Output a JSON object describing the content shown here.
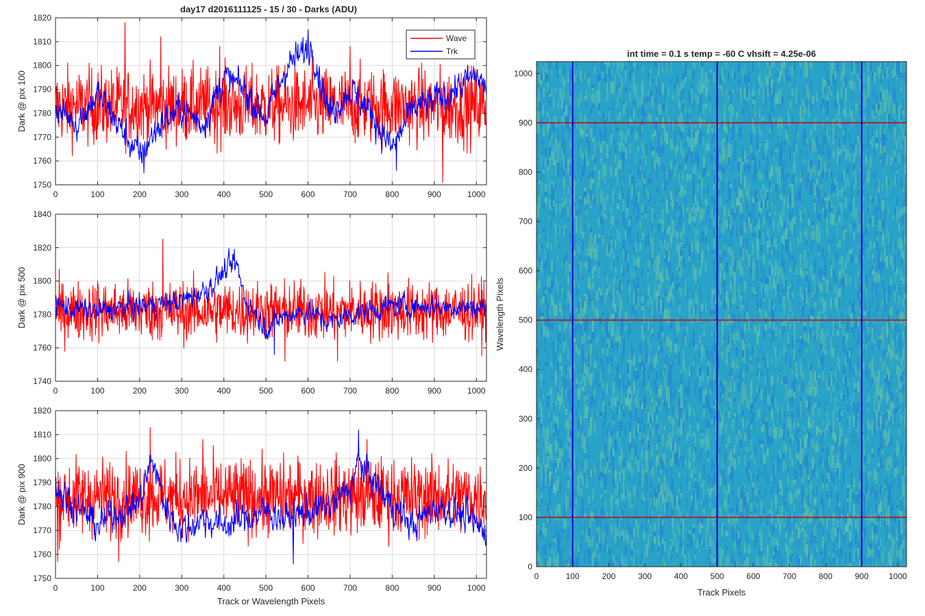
{
  "figure": {
    "title": "day17 d2016111125 - 15 / 30 - Darks (ADU)"
  },
  "legend": [
    "Wave",
    "Trk"
  ],
  "colors": {
    "wave": "#ff0000",
    "trk": "#0000ff",
    "grid": "#d9d9d9",
    "axes": "#262626",
    "image_base": "#2aa3c8",
    "image_light": "#7dcf9a",
    "image_dark": "#1f6fd6",
    "marker_red": "#cc0000",
    "marker_blue": "#0000cc"
  },
  "chart_data": [
    {
      "type": "line",
      "title": "day17 d2016111125 - 15 / 30 - Darks (ADU)",
      "xlabel": "",
      "ylabel": "Dark @ pix 100",
      "xlim": [
        0,
        1024
      ],
      "ylim": [
        1750,
        1820
      ],
      "xticks": [
        0,
        100,
        200,
        300,
        400,
        500,
        600,
        700,
        800,
        900,
        1000
      ],
      "yticks": [
        1750,
        1760,
        1770,
        1780,
        1790,
        1800,
        1810,
        1820
      ],
      "grid": true,
      "legend_position": "top-right",
      "series": [
        {
          "name": "Wave",
          "color": "#ff0000",
          "mean": 1783,
          "noise_sd": 8,
          "smooth_points": [
            [
              0,
              1783
            ],
            [
              1024,
              1783
            ]
          ],
          "spikes": [
            [
              165,
              1818
            ],
            [
              250,
              1812
            ],
            [
              390,
              1808
            ],
            [
              700,
              1808
            ],
            [
              920,
              1751
            ]
          ]
        },
        {
          "name": "Trk",
          "color": "#0000ff",
          "mean": 1780,
          "noise_sd": 4,
          "smooth_points": [
            [
              0,
              1782
            ],
            [
              50,
              1776
            ],
            [
              100,
              1788
            ],
            [
              150,
              1775
            ],
            [
              200,
              1762
            ],
            [
              250,
              1776
            ],
            [
              300,
              1782
            ],
            [
              350,
              1775
            ],
            [
              400,
              1795
            ],
            [
              450,
              1790
            ],
            [
              500,
              1778
            ],
            [
              550,
              1800
            ],
            [
              610,
              1808
            ],
            [
              650,
              1780
            ],
            [
              700,
              1790
            ],
            [
              750,
              1780
            ],
            [
              800,
              1765
            ],
            [
              850,
              1782
            ],
            [
              900,
              1785
            ],
            [
              950,
              1790
            ],
            [
              1000,
              1796
            ],
            [
              1024,
              1790
            ]
          ],
          "spikes": [
            [
              600,
              1815
            ],
            [
              210,
              1755
            ],
            [
              810,
              1756
            ]
          ]
        }
      ]
    },
    {
      "type": "line",
      "xlabel": "",
      "ylabel": "Dark @ pix 500",
      "xlim": [
        0,
        1024
      ],
      "ylim": [
        1740,
        1840
      ],
      "xticks": [
        0,
        100,
        200,
        300,
        400,
        500,
        600,
        700,
        800,
        900,
        1000
      ],
      "yticks": [
        1740,
        1760,
        1780,
        1800,
        1820,
        1840
      ],
      "grid": true,
      "series": [
        {
          "name": "Wave",
          "color": "#ff0000",
          "mean": 1782,
          "noise_sd": 9,
          "smooth_points": [
            [
              0,
              1782
            ],
            [
              1024,
              1782
            ]
          ],
          "spikes": [
            [
              255,
              1825
            ],
            [
              100,
              1800
            ],
            [
              670,
              1752
            ],
            [
              545,
              1752
            ],
            [
              790,
              1805
            ]
          ]
        },
        {
          "name": "Trk",
          "color": "#0000ff",
          "mean": 1783,
          "noise_sd": 4,
          "smooth_points": [
            [
              0,
              1785
            ],
            [
              100,
              1782
            ],
            [
              200,
              1785
            ],
            [
              300,
              1788
            ],
            [
              360,
              1795
            ],
            [
              410,
              1808
            ],
            [
              430,
              1810
            ],
            [
              450,
              1790
            ],
            [
              500,
              1772
            ],
            [
              550,
              1780
            ],
            [
              600,
              1782
            ],
            [
              650,
              1775
            ],
            [
              700,
              1780
            ],
            [
              800,
              1785
            ],
            [
              900,
              1785
            ],
            [
              1024,
              1784
            ]
          ],
          "spikes": [
            [
              425,
              1819
            ],
            [
              520,
              1756
            ]
          ]
        }
      ]
    },
    {
      "type": "line",
      "xlabel": "Track or Wavelength Pixels",
      "ylabel": "Dark @ pix 900",
      "xlim": [
        0,
        1024
      ],
      "ylim": [
        1750,
        1820
      ],
      "xticks": [
        0,
        100,
        200,
        300,
        400,
        500,
        600,
        700,
        800,
        900,
        1000
      ],
      "yticks": [
        1750,
        1760,
        1770,
        1780,
        1790,
        1800,
        1810,
        1820
      ],
      "grid": true,
      "series": [
        {
          "name": "Wave",
          "color": "#ff0000",
          "mean": 1784,
          "noise_sd": 8,
          "smooth_points": [
            [
              0,
              1784
            ],
            [
              1024,
              1784
            ]
          ],
          "spikes": [
            [
              225,
              1813
            ],
            [
              5,
              1757
            ],
            [
              350,
              1808
            ],
            [
              150,
              1757
            ],
            [
              740,
              1808
            ]
          ]
        },
        {
          "name": "Trk",
          "color": "#0000ff",
          "mean": 1778,
          "noise_sd": 4,
          "smooth_points": [
            [
              0,
              1788
            ],
            [
              50,
              1780
            ],
            [
              100,
              1772
            ],
            [
              150,
              1778
            ],
            [
              200,
              1782
            ],
            [
              230,
              1800
            ],
            [
              260,
              1780
            ],
            [
              300,
              1770
            ],
            [
              350,
              1775
            ],
            [
              400,
              1772
            ],
            [
              450,
              1775
            ],
            [
              500,
              1778
            ],
            [
              550,
              1775
            ],
            [
              600,
              1778
            ],
            [
              650,
              1780
            ],
            [
              700,
              1788
            ],
            [
              720,
              1798
            ],
            [
              760,
              1790
            ],
            [
              800,
              1780
            ],
            [
              850,
              1772
            ],
            [
              900,
              1780
            ],
            [
              950,
              1778
            ],
            [
              1000,
              1772
            ],
            [
              1024,
              1770
            ]
          ],
          "spikes": [
            [
              720,
              1812
            ],
            [
              565,
              1756
            ]
          ]
        }
      ]
    },
    {
      "type": "heatmap",
      "title": "int time = 0.1 s   temp = -60 C   vhsift = 4.25e-06",
      "xlabel": "Track Pixels",
      "ylabel": "Wavelength Pixels",
      "xlim": [
        0,
        1024
      ],
      "ylim": [
        0,
        1024
      ],
      "xticks": [
        0,
        100,
        200,
        300,
        400,
        500,
        600,
        700,
        800,
        900,
        1000
      ],
      "yticks": [
        0,
        100,
        200,
        300,
        400,
        500,
        600,
        700,
        800,
        900,
        1000
      ],
      "horizontal_lines_y": [
        100,
        500,
        900
      ],
      "vertical_lines_x": [
        100,
        500,
        900
      ],
      "horizontal_line_color": "#cc0000",
      "vertical_line_color": "#0000cc"
    }
  ]
}
